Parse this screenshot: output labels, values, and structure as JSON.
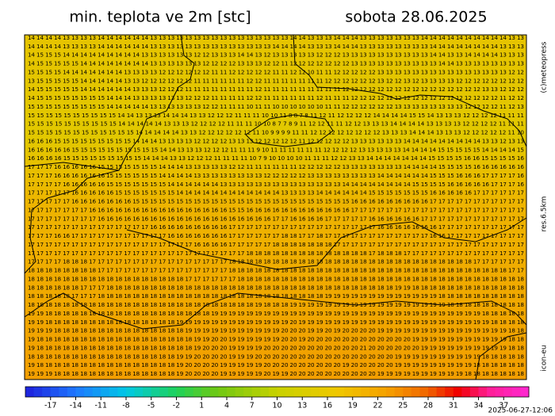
{
  "header": {
    "title": "min. teplota ve 2m [stc]",
    "date": "sobota 28.06.2025"
  },
  "map": {
    "rows": [
      "14 14 14 14 13 13 13 13 14 14 14 14 14 14 13 13 13 13 13 13 13 13 13 13 13 13 13 13 13 13 14 14 13 13 13 14 14 14 13 13 13 13 13 13 13 14 14 14 14 14 14 14 14 14 14 13 13",
      "14 14 14 14 13 13 13 13 14 14 14 14 14 14 13 13 13 13 13 13 13 13 13 13 13 13 13 13 14 14 14 14 13 13 13 14 14 14 13 13 13 13 13 13 13 13 14 14 14 14 14 14 14 14 13 13 13",
      "14 15 15 15 14 14 14 14 14 14 14 14 14 13 13 13 13 13 13 12 12 13 13 13 14 14 13 12 13 13 13 13 13 12 12 12 13 13 13 13 13 13 13 13 13 13 14 14 13 13 14 14 14 14 13 13 13",
      "14 15 15 15 15 15 14 14 14 14 14 14 14 14 13 13 13 13 13 13 12 12 12 12 13 13 13 12 12 11 12 12 12 12 12 12 12 13 13 13 13 13 13 13 13 13 13 14 14 13 13 13 13 13 13 13 13",
      "15 15 15 15 14 14 14 14 14 14 14 13 13 13 13 12 12 12 12 12 12 11 11 12 12 12 12 12 11 11 12 12 10 11 11 12 12 12 12 12 13 13 13 13 13 13 13 13 13 13 13 13 13 13 13 12 12",
      "13 15 15 15 15 15 14 14 14 14 14 13 13 12 12 12 12 12 12 11 11 11 11 11 11 12 12 11 11 11 11 11 11 11 12 12 12 12 12 12 13 12 12 13 12 13 13 13 13 12 12 12 12 12 12 12 12",
      "14 15 15 15 15 15 14 14 14 14 14 14 13 13 13 12 12 12 11 11 11 11 11 11 11 11 12 11 11 11 11 11 11 11 11 11 12 12 12 12 12 12 12 12 12 12 12 12 12 12 12 12 13 13 12 12 12",
      "14 15 15 15 15 15 15 15 15 14 14 14 13 13 13 13 13 13 12 12 12 11 11 11 11 12 12 11 11 11 11 11 11 12 11 11 11 12 12 12 12 12 12 12 12 12 12 12 12 12 12 12 12 12 11 12 12",
      "15 15 15 15 15 15 15 15 15 14 14 14 14 14 13 13 13 13 13 13 12 12 11 11 11 10 11 11 10 10 10 10 10 10 11 11 12 12 12 12 12 12 13 13 13 13 13 13 13 13 12 12 12 12 11 12 13",
      "15 15 15 15 15 15 15 15 15 15 14 14 13 13 13 14 14 14 13 13 12 12 12 11 11 11 10 10 11 8 8 7 8 11 12 11 12 12 12 12 14 14 14 14 15 15 14 13 13 13 12 12 12 12 11 11 11",
      "15 15 15 15 15 15 15 15 15 15 14 14 14 14 14 13 13 13 12 12 12 12 11 11 11 10 10 8 7 7 8 9 11 12 12 11 11 12 12 13 13 13 14 14 14 14 13 13 13 13 12 12 12 12 11 11 11",
      "15 15 15 15 15 15 15 15 15 15 15 15 14 14 14 14 14 13 13 12 12 12 12 12 12 11 10 9 9 9 9 11 11 12 12 12 12 12 12 12 12 13 13 13 14 14 14 13 13 13 12 12 12 12 12 11 10",
      "16 16 16 15 15 15 15 15 15 15 15 15 14 14 14 13 13 13 13 12 12 12 12 13 13 13 12 12 12 12 12 11 12 12 12 12 12 13 13 13 13 13 13 14 14 14 14 14 14 14 14 14 13 13 12 13 13",
      "16 16 16 16 16 15 15 15 15 15 15 15 15 15 15 14 14 13 13 13 12 12 12 11 11 11 9 10 11 11 11 11 11 11 12 12 12 12 13 13 13 13 13 14 14 14 14 15 15 15 15 15 14 14 14 14 15",
      "16 16 16 16 15 15 15 15 15 15 15 15 15 14 14 14 13 13 12 12 12 11 11 11 11 10 7 9 10 10 10 10 11 11 11 12 12 13 13 14 14 14 14 14 14 14 15 15 15 15 16 16 15 15 15 15 16",
      "17 17 17 16 16 16 16 16 15 15 15 15 15 15 15 14 14 14 13 13 13 13 13 12 12 11 11 11 11 11 11 12 12 12 12 12 13 13 13 13 13 13 13 14 14 14 14 15 15 15 15 16 16 16 16 16 16",
      "17 17 17 16 16 16 16 16 16 15 15 15 15 15 15 14 14 14 14 13 13 13 13 13 13 13 13 12 12 12 12 12 13 13 13 13 13 13 13 13 14 14 14 14 14 14 15 15 15 16 16 16 17 17 17 17 16",
      "17 17 17 17 16 16 16 16 16 15 15 15 15 15 15 15 14 14 14 14 14 14 13 13 13 13 13 13 13 13 13 13 13 13 13 13 14 14 14 14 14 14 14 14 15 15 15 15 16 16 16 16 16 17 17 17 16",
      "17 17 17 17 17 16 16 16 16 16 15 15 15 15 15 15 15 14 14 14 14 14 14 14 14 14 14 14 14 13 13 13 13 14 14 14 14 14 14 15 15 15 15 15 15 15 16 16 16 16 16 17 17 17 17 17 17",
      "17 17 17 17 17 16 16 16 16 16 16 16 15 15 15 15 15 15 15 15 15 15 15 15 15 15 15 15 15 15 15 15 15 15 15 15 15 16 16 16 16 16 16 16 16 16 17 17 17 17 17 17 17 17 17 17 17",
      "17 17 17 17 17 17 17 16 16 16 16 16 16 16 16 16 16 16 16 16 16 16 16 15 15 16 16 16 16 16 16 16 16 16 16 16 16 17 17 17 17 17 17 17 17 17 17 17 17 17 17 17 17 17 17 17 17",
      "17 17 17 17 17 17 17 17 16 16 16 16 16 16 16 16 16 16 16 16 16 16 16 16 16 16 16 16 17 17 16 16 16 16 17 17 17 17 17 16 16 16 16 16 16 17 17 17 17 17 17 17 17 17 17 17 17",
      "17 17 17 17 17 17 17 17 17 17 17 17 17 17 16 16 16 16 16 16 16 16 16 17 17 17 17 17 17 17 17 17 17 17 17 17 17 17 17 17 16 16 16 16 16 16 16 17 17 17 17 17 17 17 17 17 17",
      "17 17 17 16 16 17 17 17 17 17 17 17 17 17 17 17 16 16 16 16 16 16 16 17 17 17 17 17 17 18 18 17 17 18 17 17 17 17 17 17 17 17 17 17 17 17 16 16 17 17 17 17 17 17 17 17 17",
      "17 17 17 17 17 17 17 17 17 17 17 17 17 17 17 17 17 17 17 16 16 16 16 17 17 17 17 17 18 18 18 18 18 18 18 17 17 17 17 17 17 17 17 17 17 17 17 17 17 17 17 17 17 17 17 17 17",
      "17 17 17 17 17 17 17 17 17 17 17 17 17 17 17 17 17 17 17 17 17 17 17 17 17 18 18 18 18 18 18 18 18 18 18 18 18 18 18 17 18 18 18 17 17 17 17 17 17 17 17 17 17 17 17 17 17",
      "17 17 17 17 18 18 18 17 17 17 17 17 17 17 17 17 17 17 17 17 17 17 17 18 18 18 18 18 18 18 18 18 18 18 18 18 18 18 18 18 18 18 18 18 18 18 18 18 18 18 18 17 17 17 17 17 17",
      "18 18 18 18 18 18 18 18 17 17 17 17 17 17 17 17 17 17 17 17 17 17 17 18 18 18 18 18 18 18 18 18 18 18 18 18 18 18 18 18 18 18 18 18 18 18 18 18 18 18 18 18 18 18 18 17 17",
      "18 18 18 18 18 18 18 18 18 18 18 18 18 18 18 18 18 18 17 17 17 17 17 17 18 18 18 18 18 18 18 18 18 18 18 18 18 18 18 18 18 18 18 18 18 18 18 18 18 18 18 18 18 18 18 18 18",
      "18 18 18 18 18 18 17 17 17 18 18 18 18 18 18 18 18 18 18 18 18 18 18 18 18 18 18 18 18 18 18 18 18 18 18 18 18 18 18 18 18 18 19 19 18 18 18 18 18 18 18 18 18 18 18 18 18",
      "18 18 18 18 18 17 17 17 18 18 18 18 18 18 18 18 18 18 18 18 18 18 18 18 18 18 18 18 18 18 18 18 18 18 19 19 19 19 19 19 19 19 19 19 19 19 19 18 18 18 18 18 18 18 18 18 18",
      "18 18 18 18 18 18 18 18 18 18 18 18 18 18 18 18 18 18 18 18 18 18 18 18 18 18 19 18 18 18 19 19 19 19 19 19 19 19 19 19 19 19 19 19 19 19 19 19 18 18 18 18 18 18 18 18 18",
      "19 19 18 18 18 18 18 18 18 18 18 18 18 18 18 18 18 18 18 18 18 19 19 19 19 19 19 19 19 19 19 19 19 19 19 19 19 19 19 19 19 19 19 19 19 19 19 19 19 19 19 19 18 18 18 18 18",
      "19 19 18 18 18 18 18 18 18 18 18 18 18 18 18 18 18 19 19 19 19 19 19 19 19 19 19 19 19 19 20 19 19 19 19 19 19 19 19 19 19 19 19 19 19 19 19 19 19 19 19 19 19 18 18 18 18",
      "19 19 19 18 18 18 18 18 18 18 18 18 18 18 18 18 18 18 19 19 19 19 19 19 19 19 19 19 19 20 20 20 19 19 20 19 20 20 20 20 19 19 19 19 19 19 19 19 19 19 19 19 19 19 19 18 18",
      "19 18 18 18 18 18 18 18 18 18 18 18 18 18 18 18 18 18 18 19 19 20 20 19 19 19 19 19 19 20 20 19 20 20 20 20 20 20 20 20 20 20 20 20 19 19 19 19 19 19 19 19 19 19 19 18 18",
      "19 18 18 18 18 18 18 18 18 18 18 18 18 18 18 18 18 18 18 19 20 20 20 19 19 19 19 20 20 20 20 20 20 20 20 20 20 20 21 20 20 20 20 20 20 19 19 19 19 19 19 19 19 19 19 18 18",
      "18 18 18 18 18 18 18 18 18 18 18 18 18 18 18 18 18 19 19 20 20 20 20 19 19 19 20 20 20 20 20 20 20 20 20 20 20 20 20 20 20 20 19 19 19 19 19 19 19 19 19 19 18 18 18 18 18",
      "19 18 18 18 18 18 18 18 18 18 18 18 18 18 18 18 18 19 20 20 20 20 19 19 19 19 19 20 20 20 20 20 20 20 20 20 19 20 20 20 20 20 19 19 19 19 19 19 19 19 19 18 18 18 18 18 18",
      "19 19 19 18 18 18 18 18 18 18 18 18 18 18 18 18 18 19 20 20 20 20 19 19 19 19 19 20 19 19 20 20 20 20 20 20 20 20 20 20 19 19 19 19 19 19 19 19 19 19 18 18 18 18 18 18 18"
    ]
  },
  "colorbar": {
    "lim": [
      -20,
      40
    ],
    "ticks": [
      -17,
      -14,
      -11,
      -8,
      -5,
      -2,
      1,
      4,
      7,
      10,
      13,
      16,
      19,
      22,
      25,
      28,
      31,
      34,
      37
    ]
  },
  "credits": {
    "copyright": "(c)meteopress",
    "resolution": "res.6.5km",
    "model": "icon-eu",
    "timestamp": "2025-06-27-12:06"
  }
}
